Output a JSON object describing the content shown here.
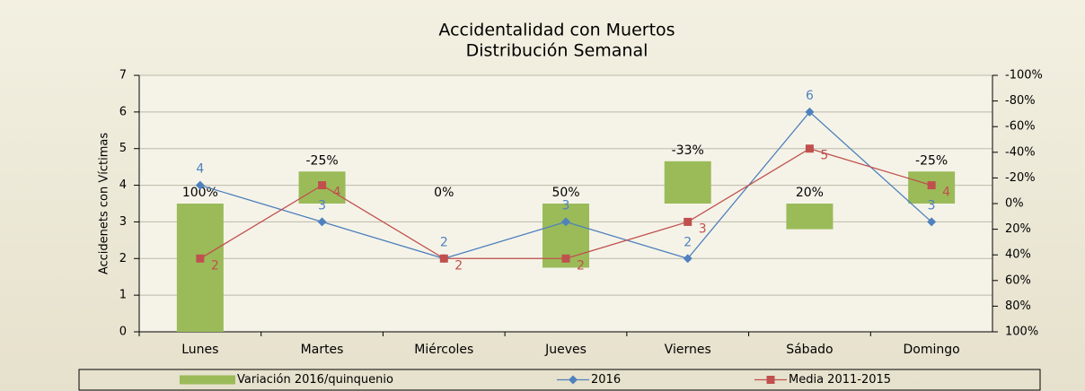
{
  "chart_data": {
    "type": "bar",
    "title": "Accidentalidad con Muertos",
    "subtitle": "Distribución Semanal",
    "y_label": "Accidenets con Víctimas",
    "categories": [
      "Lunes",
      "Martes",
      "Miércoles",
      "Jueves",
      "Viernes",
      "Sábado",
      "Domingo"
    ],
    "series": [
      {
        "name": "Variación 2016/quinquenio",
        "type": "bar",
        "axis": "y2",
        "color": "#9bbb59",
        "values": [
          100,
          -25,
          0,
          50,
          -33,
          20,
          -25
        ],
        "value_labels": [
          "100%",
          "-25%",
          "0%",
          "50%",
          "-33%",
          "20%",
          "-25%"
        ]
      },
      {
        "name": "2016",
        "type": "line",
        "marker": "diamond",
        "color": "#4f81bd",
        "values": [
          4,
          3,
          2,
          3,
          2,
          6,
          3
        ]
      },
      {
        "name": "Media 2011-2015",
        "type": "line",
        "marker": "square",
        "color": "#c0504d",
        "values": [
          2,
          4,
          2,
          2,
          3,
          5,
          4
        ]
      }
    ],
    "ylim": [
      0,
      7
    ],
    "yticks": [
      0,
      1,
      2,
      3,
      4,
      5,
      6,
      7
    ],
    "y2lim": [
      100,
      -100
    ],
    "y2ticks": [
      {
        "value": -100,
        "label": "-100%"
      },
      {
        "value": -80,
        "label": "-80%"
      },
      {
        "value": -60,
        "label": "-60%"
      },
      {
        "value": -40,
        "label": "-40%"
      },
      {
        "value": -20,
        "label": "-20%"
      },
      {
        "value": 0,
        "label": "0%"
      },
      {
        "value": 20,
        "label": "20%"
      },
      {
        "value": 40,
        "label": "40%"
      },
      {
        "value": 60,
        "label": "60%"
      },
      {
        "value": 80,
        "label": "80%"
      },
      {
        "value": 100,
        "label": "100%"
      }
    ],
    "grid": true,
    "legend": "bottom"
  }
}
